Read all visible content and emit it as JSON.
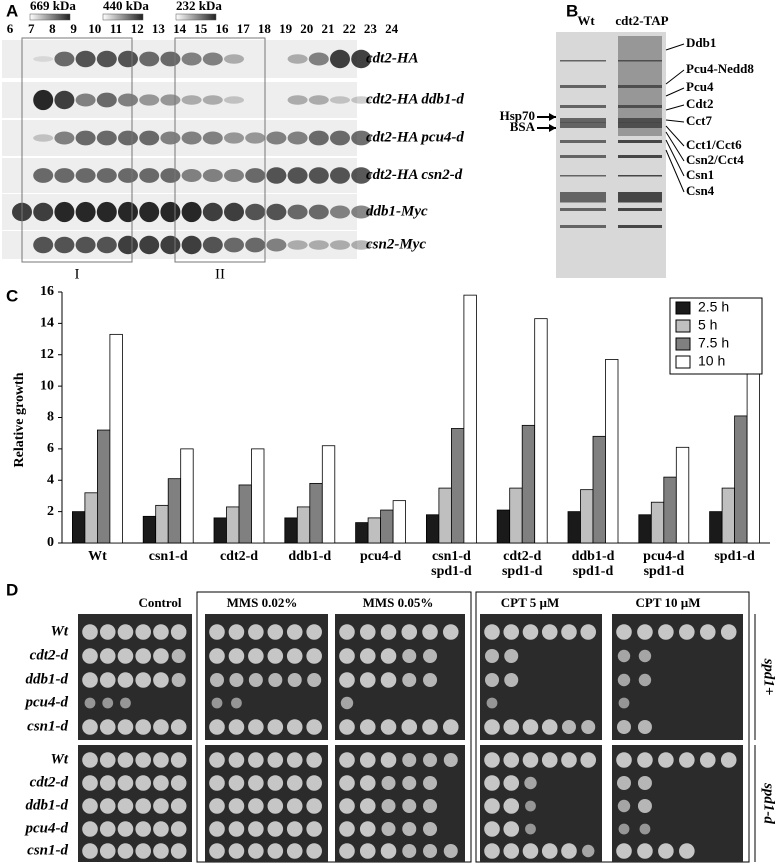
{
  "panel_a": {
    "label": "A",
    "markers": [
      "669 kDa",
      "440 kDa",
      "232 kDa"
    ],
    "fractions": [
      "6",
      "7",
      "8",
      "9",
      "10",
      "11",
      "12",
      "13",
      "14",
      "15",
      "16",
      "17",
      "18",
      "19",
      "20",
      "21",
      "22",
      "23",
      "24"
    ],
    "rows": [
      "cdt2-HA",
      "cdt2-HA ddb1-d",
      "cdt2-HA pcu4-d",
      "cdt2-HA csn2-d",
      "ddb1-Myc",
      "csn2-Myc"
    ],
    "regions": [
      "I",
      "II"
    ]
  },
  "panel_b": {
    "label": "B",
    "lanes": [
      "Wt",
      "cdt2-TAP"
    ],
    "left_labels": [
      "Hsp70",
      "BSA"
    ],
    "right_labels": [
      "Ddb1",
      "Pcu4-Nedd8",
      "Pcu4",
      "Cdt2",
      "Cct7",
      "Cct1/Cct6",
      "Csn2/Cct4",
      "Csn1",
      "Csn4"
    ]
  },
  "panel_c": {
    "label": "C"
  },
  "chart_data": {
    "type": "bar",
    "ylabel": "Relative growth",
    "categories": [
      [
        "Wt"
      ],
      [
        "csn1-d"
      ],
      [
        "cdt2-d"
      ],
      [
        "ddb1-d"
      ],
      [
        "pcu4-d"
      ],
      [
        "csn1-d",
        "spd1-d"
      ],
      [
        "cdt2-d",
        "spd1-d"
      ],
      [
        "ddb1-d",
        "spd1-d"
      ],
      [
        "pcu4-d",
        "spd1-d"
      ],
      [
        "spd1-d"
      ]
    ],
    "series": [
      {
        "name": "2.5 h",
        "color": "#1a1a1a",
        "values": [
          2.0,
          1.7,
          1.6,
          1.6,
          1.3,
          1.8,
          2.1,
          2.0,
          1.8,
          2.0
        ]
      },
      {
        "name": "5 h",
        "color": "#bfbfbf",
        "values": [
          3.2,
          2.4,
          2.3,
          2.3,
          1.6,
          3.5,
          3.5,
          3.4,
          2.6,
          3.5
        ]
      },
      {
        "name": "7.5 h",
        "color": "#808080",
        "values": [
          7.2,
          4.1,
          3.7,
          3.8,
          2.1,
          7.3,
          7.5,
          6.8,
          4.2,
          8.1
        ]
      },
      {
        "name": "10 h",
        "color": "#ffffff",
        "values": [
          13.3,
          6.0,
          6.0,
          6.2,
          2.7,
          15.8,
          14.3,
          11.7,
          6.1,
          15.4
        ]
      }
    ],
    "ylim": [
      0,
      16
    ],
    "yticks": [
      0,
      2,
      4,
      6,
      8,
      10,
      12,
      14,
      16
    ],
    "legend": "top-right"
  },
  "panel_d": {
    "label": "D",
    "conditions": [
      "Control",
      "MMS 0.02%",
      "MMS 0.05%",
      "CPT 5 µM",
      "CPT 10 µM"
    ],
    "strains": [
      "Wt",
      "cdt2-d",
      "ddb1-d",
      "pcu4-d",
      "csn1-d"
    ],
    "backgrounds": [
      "spd1+",
      "spd1-d"
    ]
  }
}
